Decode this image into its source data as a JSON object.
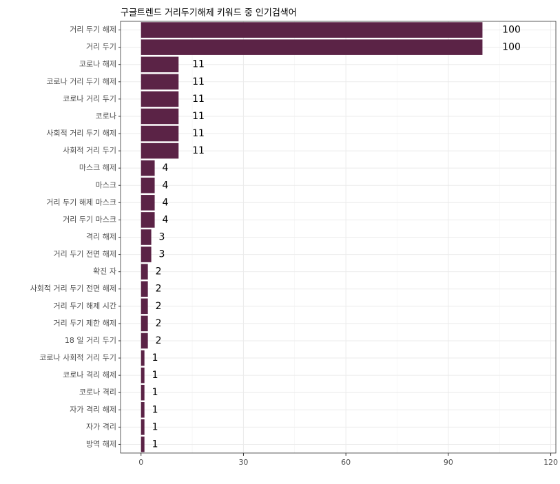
{
  "chart_data": {
    "type": "barh",
    "title": "구글트렌드 거리두기해제 키워드 중 인기검색어",
    "categories": [
      "거리 두기 해제",
      "거리 두기",
      "코로나 해제",
      "코로나 거리 두기 해제",
      "코로나 거리 두기",
      "코로나",
      "사회적 거리 두기 해제",
      "사회적 거리 두기",
      "마스크 해제",
      "마스크",
      "거리 두기 해제 마스크",
      "거리 두기 마스크",
      "격리 해제",
      "거리 두기 전면 해제",
      "확진 자",
      "사회적 거리 두기 전면 해제",
      "거리 두기 해제 시간",
      "거리 두기 제한 해제",
      "18 일 거리 두기",
      "코로나 사회적 거리 두기",
      "코로나 격리 해제",
      "코로나 격리",
      "자가 격리 해제",
      "자가 격리",
      "방역 해제"
    ],
    "values": [
      100,
      100,
      11,
      11,
      11,
      11,
      11,
      11,
      4,
      4,
      4,
      4,
      3,
      3,
      2,
      2,
      2,
      2,
      2,
      1,
      1,
      1,
      1,
      1,
      1
    ],
    "color": "#5b2346",
    "xlim": [
      -6,
      121.5
    ],
    "xticks": [
      0,
      30,
      60,
      90,
      120
    ],
    "xminor": [
      15,
      45,
      75,
      105
    ],
    "grid": true
  }
}
